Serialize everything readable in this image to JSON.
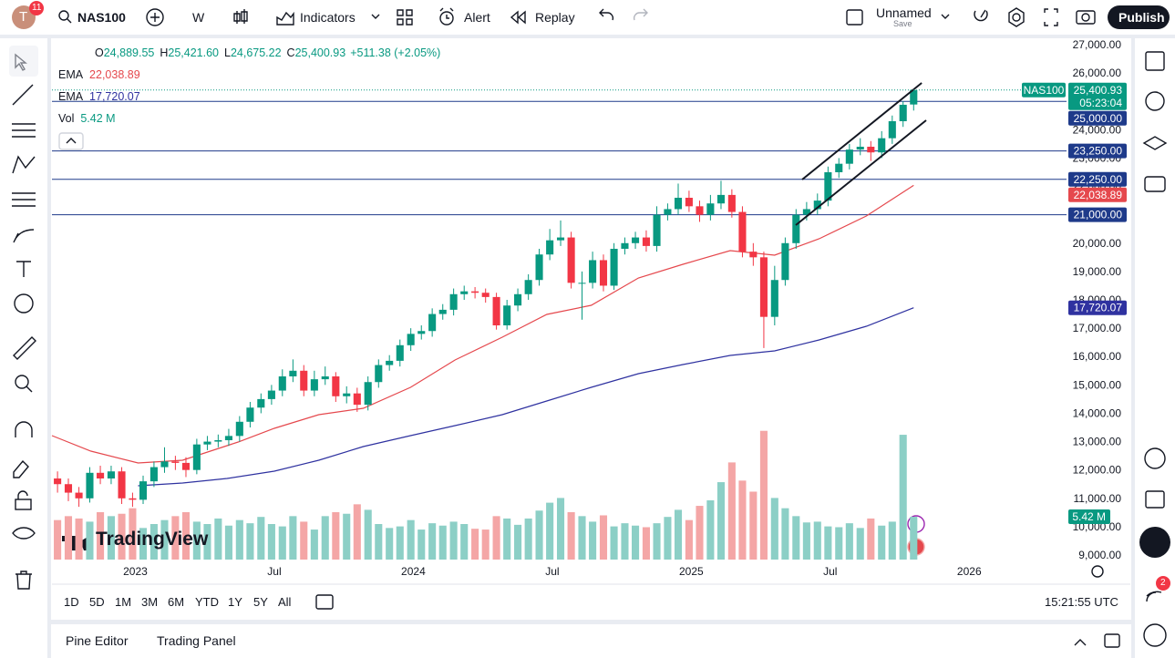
{
  "toolbar": {
    "avatar": "T",
    "notifications": "11",
    "symbol": "NAS100",
    "interval": "W",
    "indicators": "Indicators",
    "alert": "Alert",
    "replay": "Replay",
    "layout_name": "Unnamed",
    "layout_status": "Save",
    "publish": "Publish"
  },
  "legend": {
    "ohlc": [
      {
        "key": "O",
        "value": "24,889.55"
      },
      {
        "key": "H",
        "value": "25,421.60"
      },
      {
        "key": "L",
        "value": "24,675.22"
      },
      {
        "key": "C",
        "value": "25,400.93"
      }
    ],
    "change": "+511.38 (+2.05%)"
  },
  "chart_data": {
    "type": "candlestick",
    "x": [
      2022.72,
      2022.759,
      2022.797,
      2022.836,
      2022.874,
      2022.913,
      2022.951,
      2022.99,
      2023.028,
      2023.067,
      2023.105,
      2023.144,
      2023.182,
      2023.221,
      2023.259,
      2023.298,
      2023.336,
      2023.375,
      2023.413,
      2023.452,
      2023.49,
      2023.529,
      2023.567,
      2023.606,
      2023.644,
      2023.683,
      2023.721,
      2023.76,
      2023.798,
      2023.837,
      2023.875,
      2023.914,
      2023.952,
      2023.991,
      2024.029,
      2024.068,
      2024.106,
      2024.145,
      2024.183,
      2024.222,
      2024.26,
      2024.299,
      2024.337,
      2024.376,
      2024.414,
      2024.453,
      2024.491,
      2024.53,
      2024.568,
      2024.607,
      2024.645,
      2024.684,
      2024.722,
      2024.761,
      2024.799,
      2024.838,
      2024.876,
      2024.915,
      2024.953,
      2024.992,
      2025.03,
      2025.069,
      2025.107,
      2025.146,
      2025.184,
      2025.223,
      2025.261,
      2025.3,
      2025.338,
      2025.377,
      2025.415,
      2025.454,
      2025.492,
      2025.531,
      2025.569,
      2025.608,
      2025.646,
      2025.685,
      2025.723,
      2025.762,
      2025.8
    ],
    "open": [
      11700,
      11500,
      11200,
      11000,
      11900,
      11700,
      11950,
      11000,
      10950,
      11600,
      12100,
      12300,
      12250,
      12000,
      12900,
      13000,
      13050,
      13200,
      13700,
      14200,
      14500,
      14800,
      15300,
      15500,
      14800,
      15200,
      15300,
      14600,
      14700,
      14300,
      15100,
      15700,
      15850,
      16400,
      16800,
      16900,
      17500,
      17650,
      18200,
      18300,
      18250,
      18100,
      17100,
      17800,
      18200,
      18700,
      19600,
      20100,
      20200,
      18600,
      18600,
      19400,
      18500,
      19800,
      20000,
      20200,
      19900,
      21000,
      21200,
      21600,
      21300,
      21000,
      21400,
      21700,
      21100,
      19700,
      19500,
      17400,
      18700,
      20000,
      21000,
      21200,
      21500,
      22500,
      22800,
      23300,
      23400,
      23200,
      23700,
      24300,
      24889.55
    ],
    "high": [
      11950,
      11700,
      11400,
      12100,
      12150,
      12150,
      12100,
      11200,
      11800,
      12300,
      12800,
      12500,
      12450,
      13100,
      13200,
      13250,
      13450,
      13900,
      14400,
      14700,
      15000,
      15550,
      15900,
      15700,
      15500,
      15650,
      15450,
      14950,
      14900,
      15300,
      15900,
      16050,
      16600,
      17000,
      17100,
      17700,
      17850,
      18400,
      18500,
      18450,
      18400,
      18250,
      18000,
      18400,
      18900,
      19800,
      20500,
      20800,
      20400,
      19000,
      19700,
      19600,
      20000,
      20200,
      20400,
      20450,
      21300,
      21400,
      22100,
      21850,
      21500,
      21700,
      22200,
      21900,
      21300,
      20000,
      19700,
      19200,
      20200,
      21200,
      21450,
      21750,
      22700,
      23000,
      23500,
      23700,
      23600,
      23950,
      24500,
      25000,
      25421.6
    ],
    "low": [
      11200,
      10900,
      10700,
      10850,
      11500,
      11500,
      10800,
      10700,
      10800,
      11400,
      11900,
      12000,
      11750,
      11850,
      12700,
      12800,
      12850,
      13000,
      13500,
      14000,
      14300,
      14600,
      15100,
      14600,
      14600,
      15000,
      14400,
      14350,
      14050,
      14100,
      14900,
      15500,
      15650,
      16200,
      16600,
      16700,
      17300,
      17450,
      18000,
      18050,
      17900,
      16950,
      16950,
      17600,
      18000,
      18500,
      19400,
      19900,
      18400,
      17300,
      18400,
      18300,
      18350,
      19600,
      19800,
      19700,
      19700,
      20800,
      21000,
      21100,
      20750,
      20800,
      21200,
      20900,
      19500,
      19200,
      16300,
      17100,
      18500,
      19800,
      20800,
      21000,
      21300,
      22300,
      22600,
      23100,
      22900,
      23000,
      23500,
      24100,
      24675.22
    ],
    "close": [
      11500,
      11200,
      11000,
      11900,
      11700,
      11950,
      11000,
      10950,
      11600,
      12100,
      12300,
      12250,
      12000,
      12900,
      13000,
      13050,
      13200,
      13700,
      14200,
      14500,
      14800,
      15300,
      15500,
      14800,
      15200,
      15300,
      14600,
      14700,
      14300,
      15100,
      15700,
      15850,
      16400,
      16800,
      16900,
      17500,
      17650,
      18200,
      18300,
      18250,
      18100,
      17100,
      17800,
      18200,
      18700,
      19600,
      20100,
      20200,
      18600,
      18600,
      19400,
      18500,
      19800,
      20000,
      20200,
      19900,
      21000,
      21200,
      21600,
      21300,
      21000,
      21400,
      21700,
      21100,
      19700,
      19500,
      17400,
      18700,
      20000,
      21000,
      21200,
      21500,
      22500,
      22800,
      23300,
      23400,
      23200,
      23700,
      24300,
      24880,
      25400.93
    ],
    "volume": [
      5.0,
      5.5,
      5.2,
      4.8,
      6.0,
      5.5,
      5.8,
      6.5,
      4.0,
      4.5,
      5.0,
      5.5,
      6.0,
      4.8,
      4.5,
      5.2,
      4.3,
      5.0,
      4.6,
      5.4,
      4.5,
      4.2,
      5.5,
      4.8,
      3.8,
      5.5,
      6.0,
      5.8,
      7.0,
      6.3,
      4.5,
      4.0,
      4.2,
      5.0,
      3.8,
      4.6,
      4.3,
      4.8,
      4.5,
      3.9,
      3.8,
      5.5,
      5.2,
      4.4,
      5.2,
      6.2,
      7.2,
      7.8,
      6.0,
      5.5,
      4.8,
      5.6,
      4.2,
      4.6,
      4.3,
      4.1,
      4.6,
      5.4,
      6.3,
      5.0,
      6.8,
      7.5,
      9.8,
      12.3,
      10.0,
      8.6,
      16.3,
      7.8,
      6.5,
      5.5,
      4.7,
      4.8,
      4.2,
      4.1,
      4.6,
      4.0,
      5.2,
      4.3,
      4.8,
      15.8,
      5.42
    ],
    "volume_name": "Vol",
    "volume_label": "5.42 M",
    "vlim": [
      0,
      66
    ],
    "xlim": [
      2022.7,
      2026.35
    ],
    "xticks": [
      {
        "value": 2023,
        "label": "2023"
      },
      {
        "value": 2023.5,
        "label": "Jul"
      },
      {
        "value": 2024,
        "label": "2024"
      },
      {
        "value": 2024.5,
        "label": "Jul"
      },
      {
        "value": 2025,
        "label": "2025"
      },
      {
        "value": 2025.5,
        "label": "Jul"
      },
      {
        "value": 2026,
        "label": "2026"
      }
    ],
    "ylim": [
      8840,
      27225
    ],
    "yticks": [
      {
        "value": 27000,
        "label": "27,000.00"
      },
      {
        "value": 26000,
        "label": "26,000.00"
      },
      {
        "value": 25000,
        "label": "25,000.00"
      },
      {
        "value": 24000,
        "label": "24,000.00"
      },
      {
        "value": 23000,
        "label": "23,000.00"
      },
      {
        "value": 22000,
        "label": "22,000.00"
      },
      {
        "value": 21000,
        "label": "21,000.00"
      },
      {
        "value": 20000,
        "label": "20,000.00"
      },
      {
        "value": 19000,
        "label": "19,000.00"
      },
      {
        "value": 18000,
        "label": "18,000.00"
      },
      {
        "value": 17000,
        "label": "17,000.00"
      },
      {
        "value": 16000,
        "label": "16,000.00"
      },
      {
        "value": 15000,
        "label": "15,000.00"
      },
      {
        "value": 14000,
        "label": "14,000.00"
      },
      {
        "value": 13000,
        "label": "13,000.00"
      },
      {
        "value": 12000,
        "label": "12,000.00"
      },
      {
        "value": 11000,
        "label": "11,000.00"
      },
      {
        "value": 10000,
        "label": "10,000.00"
      },
      {
        "value": 9000,
        "label": "9,000.00"
      }
    ],
    "grid": false,
    "up_color": "#089981",
    "down_color": "#f23645",
    "volume_up_color": "#8ccfc6",
    "volume_down_color": "#f4a6a6",
    "hlines": [
      {
        "value": 25000,
        "label": "25,000.00"
      },
      {
        "value": 23250,
        "label": "23,250.00"
      },
      {
        "value": 22250,
        "label": "22,250.00"
      },
      {
        "value": 21000,
        "label": "21,000.00"
      }
    ],
    "hline_color": "#1e3a8a",
    "ema": [
      {
        "name": "EMA",
        "color": "#e5484d",
        "value_label": "22,038.89",
        "x": [
          2022.7,
          2022.84,
          2023.01,
          2023.17,
          2023.37,
          2023.5,
          2023.66,
          2023.82,
          2023.99,
          2024.15,
          2024.32,
          2024.48,
          2024.64,
          2024.81,
          2024.97,
          2025.14,
          2025.3,
          2025.46,
          2025.63,
          2025.8
        ],
        "values": [
          13210,
          12665,
          12247,
          12343,
          12986,
          13468,
          13950,
          14175,
          14915,
          15879,
          16682,
          17486,
          17807,
          18772,
          19254,
          19736,
          19575,
          20154,
          20957,
          22038.89
        ]
      },
      {
        "name": "EMA",
        "color": "#2f32a0",
        "value_label": "17,720.07",
        "x": [
          2023.01,
          2023.17,
          2023.33,
          2023.5,
          2023.66,
          2023.82,
          2023.99,
          2024.15,
          2024.32,
          2024.48,
          2024.64,
          2024.81,
          2024.97,
          2025.14,
          2025.3,
          2025.46,
          2025.63,
          2025.8
        ],
        "values": [
          11443,
          11540,
          11700,
          11957,
          12343,
          12825,
          13211,
          13565,
          13950,
          14432,
          14915,
          15397,
          15718,
          16039,
          16200,
          16586,
          17068,
          17720.07
        ]
      }
    ],
    "trendlines": [
      {
        "x": [
          2025.399,
          2025.829
        ],
        "values": [
          22243,
          25650
        ]
      },
      {
        "x": [
          2025.376,
          2025.845
        ],
        "values": [
          20636,
          24332
        ]
      }
    ],
    "trendline_color": "#131722",
    "countdown": "05:23:04"
  },
  "watermark": "TradingView",
  "time_ranges": [
    "1D",
    "5D",
    "1M",
    "3M",
    "6M",
    "YTD",
    "1Y",
    "5Y",
    "All"
  ],
  "clock": "15:21:55 UTC",
  "bottom_tabs": [
    "Pine Editor",
    "Trading Panel"
  ],
  "sidebar_badge": "2"
}
